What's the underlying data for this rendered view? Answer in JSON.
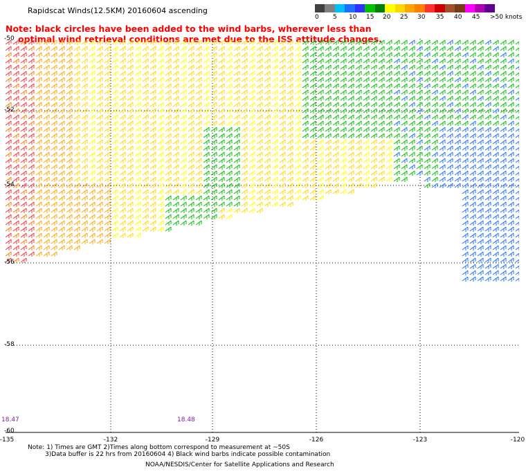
{
  "title": "Rapidscat Winds(12.5KM) 20160604 ascending",
  "note": {
    "line1": "Note: black circles have been added to the wind barbs, wherever less than",
    "line2": "optimal wind retrieval conditions are met due to the ISS attitude changes."
  },
  "legend": {
    "colors": [
      "#404040",
      "#808080",
      "#00bfff",
      "#1e6fff",
      "#3030ff",
      "#00c000",
      "#008000",
      "#ffff00",
      "#ffd700",
      "#ffa500",
      "#ff7f00",
      "#ff3030",
      "#d00000",
      "#a0522d",
      "#7a3a1a",
      "#ff00ff",
      "#b000b0",
      "#600090"
    ],
    "labels": [
      "0",
      "5",
      "10",
      "15",
      "20",
      "25",
      "30",
      "35",
      "40",
      "45",
      ">50 knots"
    ]
  },
  "map": {
    "lat_labels": [
      "-50",
      "-52",
      "-54",
      "-56",
      "-58",
      "-60"
    ],
    "lon_labels": [
      "-135",
      "-132",
      "-129",
      "-126",
      "-123",
      "-120"
    ],
    "time_labels": [
      "18.47",
      "18.48"
    ]
  },
  "footnotes": {
    "line1": "Note: 1) Times are GMT 2)Times along bottom correspond to measurement at ~50S",
    "line2": "3)Data buffer is 22 hrs from 20160604 4) Black wind barbs indicate possible contamination"
  },
  "credit": "NOAA/NESDIS/Center for Satellite Applications and Research"
}
